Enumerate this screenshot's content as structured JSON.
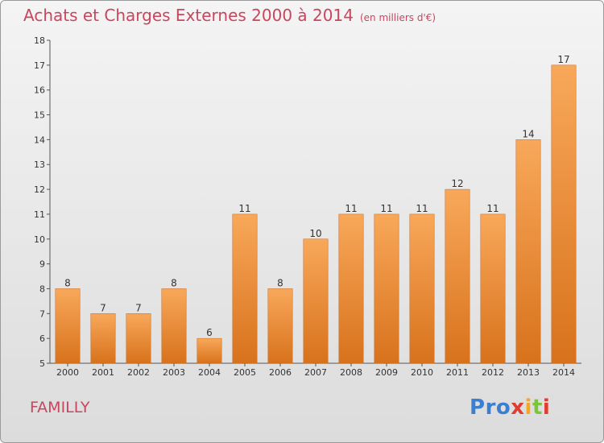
{
  "title": "Achats et Charges Externes 2000 à 2014",
  "unit": "(en milliers d'€)",
  "commune": "FAMILLY",
  "logo": {
    "letters": [
      "P",
      "r",
      "o",
      "x",
      "i",
      "t",
      "i"
    ],
    "colors": [
      "#3a7fd0",
      "#3a7fd0",
      "#3a7fd0",
      "#e23c2e",
      "#f5a623",
      "#7dc43d",
      "#e23c2e"
    ]
  },
  "colors": {
    "bar_light": "#f8a85a",
    "bar_dark": "#d8721c",
    "title": "#c8465e"
  },
  "chart_data": {
    "type": "bar",
    "title": "Achats et Charges Externes 2000 à 2014",
    "categories": [
      "2000",
      "2001",
      "2002",
      "2003",
      "2004",
      "2005",
      "2006",
      "2007",
      "2008",
      "2009",
      "2010",
      "2011",
      "2012",
      "2013",
      "2014"
    ],
    "values": [
      8,
      7,
      7,
      8,
      6,
      11,
      8,
      10,
      11,
      11,
      11,
      12,
      11,
      14,
      17
    ],
    "ylim": [
      5,
      18
    ],
    "yticks": [
      5,
      6,
      7,
      8,
      9,
      10,
      11,
      12,
      13,
      14,
      15,
      16,
      17,
      18
    ],
    "grid": false,
    "legend": "none"
  }
}
